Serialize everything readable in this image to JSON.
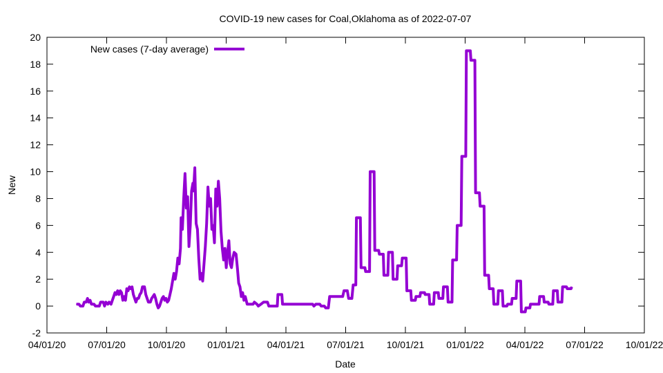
{
  "chart_data": {
    "type": "line",
    "title": "COVID-19 new cases for Coal,Oklahoma as of 2022-07-07",
    "xlabel": "Date",
    "ylabel": "New",
    "xlim": [
      "2020-04-01",
      "2022-10-01"
    ],
    "ylim": [
      -2,
      20
    ],
    "x_ticks": [
      "04/01/20",
      "07/01/20",
      "10/01/20",
      "01/01/21",
      "04/01/21",
      "07/01/21",
      "10/01/21",
      "01/01/22",
      "04/01/22",
      "07/01/22",
      "10/01/22"
    ],
    "y_ticks": [
      -2,
      0,
      2,
      4,
      6,
      8,
      10,
      12,
      14,
      16,
      18,
      20
    ],
    "grid": false,
    "legend": "top-left",
    "line_color": "#9400d3",
    "series": [
      {
        "name": "New cases (7-day average)",
        "points": [
          [
            "2020-05-16",
            0.14
          ],
          [
            "2020-05-20",
            0.14
          ],
          [
            "2020-05-22",
            0.0
          ],
          [
            "2020-05-26",
            0.0
          ],
          [
            "2020-05-28",
            0.29
          ],
          [
            "2020-05-31",
            0.29
          ],
          [
            "2020-06-02",
            0.57
          ],
          [
            "2020-06-04",
            0.29
          ],
          [
            "2020-06-06",
            0.43
          ],
          [
            "2020-06-08",
            0.14
          ],
          [
            "2020-06-12",
            0.14
          ],
          [
            "2020-06-14",
            0.0
          ],
          [
            "2020-06-20",
            0.0
          ],
          [
            "2020-06-22",
            0.29
          ],
          [
            "2020-06-26",
            0.29
          ],
          [
            "2020-06-28",
            0.0
          ],
          [
            "2020-06-30",
            0.29
          ],
          [
            "2020-07-03",
            0.14
          ],
          [
            "2020-07-05",
            0.29
          ],
          [
            "2020-07-08",
            0.14
          ],
          [
            "2020-07-10",
            0.43
          ],
          [
            "2020-07-12",
            0.71
          ],
          [
            "2020-07-14",
            1.0
          ],
          [
            "2020-07-16",
            0.86
          ],
          [
            "2020-07-18",
            1.14
          ],
          [
            "2020-07-20",
            0.86
          ],
          [
            "2020-07-22",
            1.14
          ],
          [
            "2020-07-24",
            1.0
          ],
          [
            "2020-07-26",
            0.43
          ],
          [
            "2020-07-28",
            0.71
          ],
          [
            "2020-07-30",
            0.43
          ],
          [
            "2020-08-01",
            1.29
          ],
          [
            "2020-08-03",
            1.14
          ],
          [
            "2020-08-05",
            1.43
          ],
          [
            "2020-08-07",
            1.29
          ],
          [
            "2020-08-09",
            1.43
          ],
          [
            "2020-08-11",
            0.86
          ],
          [
            "2020-08-13",
            0.57
          ],
          [
            "2020-08-15",
            0.29
          ],
          [
            "2020-08-17",
            0.57
          ],
          [
            "2020-08-19",
            0.57
          ],
          [
            "2020-08-21",
            0.86
          ],
          [
            "2020-08-23",
            1.0
          ],
          [
            "2020-08-25",
            1.43
          ],
          [
            "2020-08-28",
            1.43
          ],
          [
            "2020-08-30",
            0.86
          ],
          [
            "2020-09-01",
            0.57
          ],
          [
            "2020-09-03",
            0.29
          ],
          [
            "2020-09-06",
            0.29
          ],
          [
            "2020-09-08",
            0.57
          ],
          [
            "2020-09-10",
            0.71
          ],
          [
            "2020-09-12",
            0.86
          ],
          [
            "2020-09-14",
            0.57
          ],
          [
            "2020-09-16",
            0.14
          ],
          [
            "2020-09-18",
            -0.14
          ],
          [
            "2020-09-20",
            0.0
          ],
          [
            "2020-09-22",
            0.29
          ],
          [
            "2020-09-24",
            0.57
          ],
          [
            "2020-09-26",
            0.71
          ],
          [
            "2020-09-28",
            0.43
          ],
          [
            "2020-09-30",
            0.57
          ],
          [
            "2020-10-02",
            0.29
          ],
          [
            "2020-10-04",
            0.43
          ],
          [
            "2020-10-06",
            0.86
          ],
          [
            "2020-10-08",
            1.29
          ],
          [
            "2020-10-10",
            1.86
          ],
          [
            "2020-10-12",
            2.43
          ],
          [
            "2020-10-14",
            2.0
          ],
          [
            "2020-10-16",
            2.57
          ],
          [
            "2020-10-18",
            3.57
          ],
          [
            "2020-10-20",
            3.14
          ],
          [
            "2020-10-22",
            4.29
          ],
          [
            "2020-10-23",
            6.57
          ],
          [
            "2020-10-25",
            5.71
          ],
          [
            "2020-10-27",
            8.0
          ],
          [
            "2020-10-29",
            9.86
          ],
          [
            "2020-10-31",
            7.29
          ],
          [
            "2020-11-02",
            8.14
          ],
          [
            "2020-11-04",
            4.43
          ],
          [
            "2020-11-06",
            6.0
          ],
          [
            "2020-11-08",
            8.57
          ],
          [
            "2020-11-10",
            9.14
          ],
          [
            "2020-11-11",
            8.57
          ],
          [
            "2020-11-13",
            10.29
          ],
          [
            "2020-11-15",
            6.14
          ],
          [
            "2020-11-17",
            5.71
          ],
          [
            "2020-11-19",
            3.57
          ],
          [
            "2020-11-21",
            2.0
          ],
          [
            "2020-11-23",
            2.43
          ],
          [
            "2020-11-25",
            1.86
          ],
          [
            "2020-11-27",
            3.14
          ],
          [
            "2020-11-29",
            4.43
          ],
          [
            "2020-12-01",
            6.14
          ],
          [
            "2020-12-03",
            8.86
          ],
          [
            "2020-12-05",
            7.43
          ],
          [
            "2020-12-07",
            8.0
          ],
          [
            "2020-12-09",
            5.71
          ],
          [
            "2020-12-11",
            6.0
          ],
          [
            "2020-12-13",
            4.71
          ],
          [
            "2020-12-15",
            8.71
          ],
          [
            "2020-12-17",
            7.43
          ],
          [
            "2020-12-19",
            9.29
          ],
          [
            "2020-12-21",
            8.0
          ],
          [
            "2020-12-23",
            5.57
          ],
          [
            "2020-12-25",
            4.29
          ],
          [
            "2020-12-27",
            3.43
          ],
          [
            "2020-12-29",
            4.29
          ],
          [
            "2020-12-31",
            2.86
          ],
          [
            "2021-01-02",
            4.0
          ],
          [
            "2021-01-04",
            4.86
          ],
          [
            "2021-01-06",
            3.14
          ],
          [
            "2021-01-08",
            2.86
          ],
          [
            "2021-01-10",
            3.57
          ],
          [
            "2021-01-12",
            4.0
          ],
          [
            "2021-01-15",
            3.86
          ],
          [
            "2021-01-17",
            2.86
          ],
          [
            "2021-01-19",
            1.71
          ],
          [
            "2021-01-21",
            1.43
          ],
          [
            "2021-01-23",
            0.71
          ],
          [
            "2021-01-25",
            1.0
          ],
          [
            "2021-01-27",
            0.43
          ],
          [
            "2021-01-29",
            0.71
          ],
          [
            "2021-02-01",
            0.14
          ],
          [
            "2021-02-04",
            0.14
          ],
          [
            "2021-02-10",
            0.14
          ],
          [
            "2021-02-12",
            0.29
          ],
          [
            "2021-02-16",
            0.14
          ],
          [
            "2021-02-18",
            0.0
          ],
          [
            "2021-02-22",
            0.14
          ],
          [
            "2021-02-26",
            0.29
          ],
          [
            "2021-03-04",
            0.29
          ],
          [
            "2021-03-06",
            0.0
          ],
          [
            "2021-03-19",
            0.0
          ],
          [
            "2021-03-20",
            0.86
          ],
          [
            "2021-03-26",
            0.86
          ],
          [
            "2021-03-27",
            0.14
          ],
          [
            "2021-05-12",
            0.14
          ],
          [
            "2021-05-14",
            0.0
          ],
          [
            "2021-05-17",
            0.14
          ],
          [
            "2021-05-23",
            0.14
          ],
          [
            "2021-05-25",
            0.0
          ],
          [
            "2021-05-30",
            0.0
          ],
          [
            "2021-06-01",
            -0.14
          ],
          [
            "2021-06-05",
            -0.14
          ],
          [
            "2021-06-07",
            0.71
          ],
          [
            "2021-06-27",
            0.71
          ],
          [
            "2021-06-29",
            1.14
          ],
          [
            "2021-07-04",
            1.14
          ],
          [
            "2021-07-06",
            0.57
          ],
          [
            "2021-07-11",
            0.57
          ],
          [
            "2021-07-13",
            1.57
          ],
          [
            "2021-07-17",
            1.57
          ],
          [
            "2021-07-18",
            6.57
          ],
          [
            "2021-07-24",
            6.57
          ],
          [
            "2021-07-25",
            2.86
          ],
          [
            "2021-07-31",
            2.86
          ],
          [
            "2021-08-01",
            2.57
          ],
          [
            "2021-08-07",
            2.57
          ],
          [
            "2021-08-08",
            10.0
          ],
          [
            "2021-08-14",
            10.0
          ],
          [
            "2021-08-15",
            4.14
          ],
          [
            "2021-08-21",
            4.14
          ],
          [
            "2021-08-22",
            3.86
          ],
          [
            "2021-08-28",
            3.86
          ],
          [
            "2021-08-29",
            2.29
          ],
          [
            "2021-09-04",
            2.29
          ],
          [
            "2021-09-05",
            4.0
          ],
          [
            "2021-09-11",
            4.0
          ],
          [
            "2021-09-12",
            2.0
          ],
          [
            "2021-09-18",
            2.0
          ],
          [
            "2021-09-19",
            3.0
          ],
          [
            "2021-09-25",
            3.0
          ],
          [
            "2021-09-26",
            3.57
          ],
          [
            "2021-10-02",
            3.57
          ],
          [
            "2021-10-03",
            1.14
          ],
          [
            "2021-10-09",
            1.14
          ],
          [
            "2021-10-10",
            0.43
          ],
          [
            "2021-10-16",
            0.43
          ],
          [
            "2021-10-17",
            0.71
          ],
          [
            "2021-10-23",
            0.71
          ],
          [
            "2021-10-24",
            1.0
          ],
          [
            "2021-10-30",
            1.0
          ],
          [
            "2021-10-31",
            0.86
          ],
          [
            "2021-11-06",
            0.86
          ],
          [
            "2021-11-07",
            0.14
          ],
          [
            "2021-11-13",
            0.14
          ],
          [
            "2021-11-14",
            1.0
          ],
          [
            "2021-11-20",
            1.0
          ],
          [
            "2021-11-21",
            0.57
          ],
          [
            "2021-11-27",
            0.57
          ],
          [
            "2021-11-28",
            1.43
          ],
          [
            "2021-12-04",
            1.43
          ],
          [
            "2021-12-05",
            0.29
          ],
          [
            "2021-12-11",
            0.29
          ],
          [
            "2021-12-12",
            3.43
          ],
          [
            "2021-12-18",
            3.43
          ],
          [
            "2021-12-19",
            6.0
          ],
          [
            "2021-12-25",
            6.0
          ],
          [
            "2021-12-26",
            11.14
          ],
          [
            "2022-01-01",
            11.14
          ],
          [
            "2022-01-02",
            19.0
          ],
          [
            "2022-01-08",
            19.0
          ],
          [
            "2022-01-09",
            18.29
          ],
          [
            "2022-01-15",
            18.29
          ],
          [
            "2022-01-16",
            8.43
          ],
          [
            "2022-01-22",
            8.43
          ],
          [
            "2022-01-23",
            7.43
          ],
          [
            "2022-01-29",
            7.43
          ],
          [
            "2022-01-30",
            2.29
          ],
          [
            "2022-02-05",
            2.29
          ],
          [
            "2022-02-06",
            1.29
          ],
          [
            "2022-02-12",
            1.29
          ],
          [
            "2022-02-13",
            0.14
          ],
          [
            "2022-02-19",
            0.14
          ],
          [
            "2022-02-20",
            1.14
          ],
          [
            "2022-02-26",
            1.14
          ],
          [
            "2022-02-27",
            0.0
          ],
          [
            "2022-03-05",
            0.0
          ],
          [
            "2022-03-06",
            0.14
          ],
          [
            "2022-03-12",
            0.14
          ],
          [
            "2022-03-13",
            0.57
          ],
          [
            "2022-03-19",
            0.57
          ],
          [
            "2022-03-20",
            1.86
          ],
          [
            "2022-03-26",
            1.86
          ],
          [
            "2022-03-27",
            -0.43
          ],
          [
            "2022-04-02",
            -0.43
          ],
          [
            "2022-04-03",
            -0.14
          ],
          [
            "2022-04-09",
            -0.14
          ],
          [
            "2022-04-10",
            0.14
          ],
          [
            "2022-04-23",
            0.14
          ],
          [
            "2022-04-24",
            0.71
          ],
          [
            "2022-04-30",
            0.71
          ],
          [
            "2022-05-01",
            0.29
          ],
          [
            "2022-05-07",
            0.29
          ],
          [
            "2022-05-08",
            0.14
          ],
          [
            "2022-05-14",
            0.14
          ],
          [
            "2022-05-15",
            1.14
          ],
          [
            "2022-05-21",
            1.14
          ],
          [
            "2022-05-22",
            0.29
          ],
          [
            "2022-05-28",
            0.29
          ],
          [
            "2022-05-29",
            1.43
          ],
          [
            "2022-06-04",
            1.43
          ],
          [
            "2022-06-05",
            1.29
          ],
          [
            "2022-06-11",
            1.29
          ],
          [
            "2022-06-12",
            1.43
          ]
        ]
      }
    ]
  }
}
